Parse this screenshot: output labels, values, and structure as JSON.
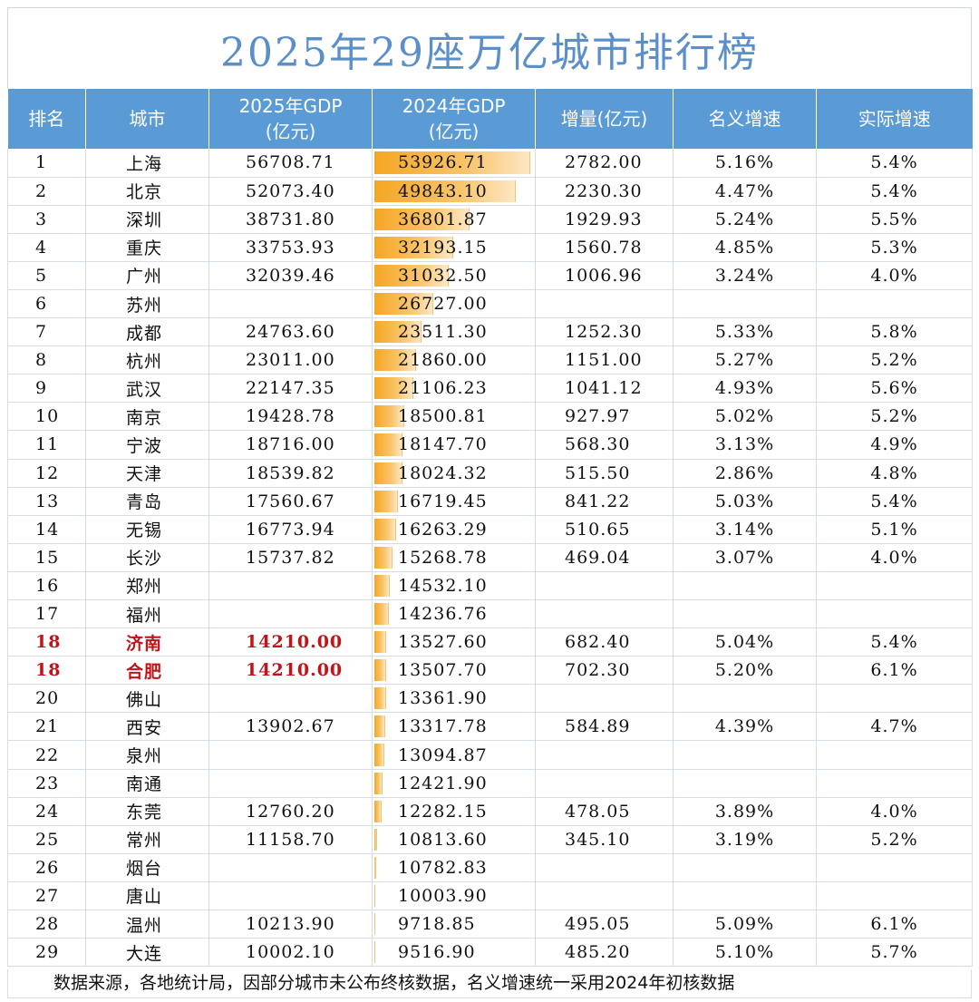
{
  "title": "2025年29座万亿城市排行榜",
  "accent_color": "#5b9bd5",
  "highlight_color": "#c0141b",
  "headers": {
    "rank": "排名",
    "city": "城市",
    "gdp2025_l1": "2025年GDP",
    "gdp2025_l2": "(亿元)",
    "gdp2024_l1": "2024年GDP",
    "gdp2024_l2": "(亿元)",
    "increase": "增量(亿元)",
    "nominal": "名义增速",
    "real": "实际增速"
  },
  "rows": [
    {
      "rank": "1",
      "city": "上海",
      "gdp2025": "56708.71",
      "gdp2024": "53926.71",
      "inc": "2782.00",
      "nom": "5.16%",
      "real": "5.4%",
      "hl": false
    },
    {
      "rank": "2",
      "city": "北京",
      "gdp2025": "52073.40",
      "gdp2024": "49843.10",
      "inc": "2230.30",
      "nom": "4.47%",
      "real": "5.4%",
      "hl": false
    },
    {
      "rank": "3",
      "city": "深圳",
      "gdp2025": "38731.80",
      "gdp2024": "36801.87",
      "inc": "1929.93",
      "nom": "5.24%",
      "real": "5.5%",
      "hl": false
    },
    {
      "rank": "4",
      "city": "重庆",
      "gdp2025": "33753.93",
      "gdp2024": "32193.15",
      "inc": "1560.78",
      "nom": "4.85%",
      "real": "5.3%",
      "hl": false
    },
    {
      "rank": "5",
      "city": "广州",
      "gdp2025": "32039.46",
      "gdp2024": "31032.50",
      "inc": "1006.96",
      "nom": "3.24%",
      "real": "4.0%",
      "hl": false
    },
    {
      "rank": "6",
      "city": "苏州",
      "gdp2025": "",
      "gdp2024": "26727.00",
      "inc": "",
      "nom": "",
      "real": "",
      "hl": false
    },
    {
      "rank": "7",
      "city": "成都",
      "gdp2025": "24763.60",
      "gdp2024": "23511.30",
      "inc": "1252.30",
      "nom": "5.33%",
      "real": "5.8%",
      "hl": false
    },
    {
      "rank": "8",
      "city": "杭州",
      "gdp2025": "23011.00",
      "gdp2024": "21860.00",
      "inc": "1151.00",
      "nom": "5.27%",
      "real": "5.2%",
      "hl": false
    },
    {
      "rank": "9",
      "city": "武汉",
      "gdp2025": "22147.35",
      "gdp2024": "21106.23",
      "inc": "1041.12",
      "nom": "4.93%",
      "real": "5.6%",
      "hl": false
    },
    {
      "rank": "10",
      "city": "南京",
      "gdp2025": "19428.78",
      "gdp2024": "18500.81",
      "inc": "927.97",
      "nom": "5.02%",
      "real": "5.2%",
      "hl": false
    },
    {
      "rank": "11",
      "city": "宁波",
      "gdp2025": "18716.00",
      "gdp2024": "18147.70",
      "inc": "568.30",
      "nom": "3.13%",
      "real": "4.9%",
      "hl": false
    },
    {
      "rank": "12",
      "city": "天津",
      "gdp2025": "18539.82",
      "gdp2024": "18024.32",
      "inc": "515.50",
      "nom": "2.86%",
      "real": "4.8%",
      "hl": false
    },
    {
      "rank": "13",
      "city": "青岛",
      "gdp2025": "17560.67",
      "gdp2024": "16719.45",
      "inc": "841.22",
      "nom": "5.03%",
      "real": "5.4%",
      "hl": false
    },
    {
      "rank": "14",
      "city": "无锡",
      "gdp2025": "16773.94",
      "gdp2024": "16263.29",
      "inc": "510.65",
      "nom": "3.14%",
      "real": "5.1%",
      "hl": false
    },
    {
      "rank": "15",
      "city": "长沙",
      "gdp2025": "15737.82",
      "gdp2024": "15268.78",
      "inc": "469.04",
      "nom": "3.07%",
      "real": "4.0%",
      "hl": false
    },
    {
      "rank": "16",
      "city": "郑州",
      "gdp2025": "",
      "gdp2024": "14532.10",
      "inc": "",
      "nom": "",
      "real": "",
      "hl": false
    },
    {
      "rank": "17",
      "city": "福州",
      "gdp2025": "",
      "gdp2024": "14236.76",
      "inc": "",
      "nom": "",
      "real": "",
      "hl": false
    },
    {
      "rank": "18",
      "city": "济南",
      "gdp2025": "14210.00",
      "gdp2024": "13527.60",
      "inc": "682.40",
      "nom": "5.04%",
      "real": "5.4%",
      "hl": true
    },
    {
      "rank": "18",
      "city": "合肥",
      "gdp2025": "14210.00",
      "gdp2024": "13507.70",
      "inc": "702.30",
      "nom": "5.20%",
      "real": "6.1%",
      "hl": true
    },
    {
      "rank": "20",
      "city": "佛山",
      "gdp2025": "",
      "gdp2024": "13361.90",
      "inc": "",
      "nom": "",
      "real": "",
      "hl": false
    },
    {
      "rank": "21",
      "city": "西安",
      "gdp2025": "13902.67",
      "gdp2024": "13317.78",
      "inc": "584.89",
      "nom": "4.39%",
      "real": "4.7%",
      "hl": false
    },
    {
      "rank": "22",
      "city": "泉州",
      "gdp2025": "",
      "gdp2024": "13094.87",
      "inc": "",
      "nom": "",
      "real": "",
      "hl": false
    },
    {
      "rank": "23",
      "city": "南通",
      "gdp2025": "",
      "gdp2024": "12421.90",
      "inc": "",
      "nom": "",
      "real": "",
      "hl": false
    },
    {
      "rank": "24",
      "city": "东莞",
      "gdp2025": "12760.20",
      "gdp2024": "12282.15",
      "inc": "478.05",
      "nom": "3.89%",
      "real": "4.0%",
      "hl": false
    },
    {
      "rank": "25",
      "city": "常州",
      "gdp2025": "11158.70",
      "gdp2024": "10813.60",
      "inc": "345.10",
      "nom": "3.19%",
      "real": "5.2%",
      "hl": false
    },
    {
      "rank": "26",
      "city": "烟台",
      "gdp2025": "",
      "gdp2024": "10782.83",
      "inc": "",
      "nom": "",
      "real": "",
      "hl": false
    },
    {
      "rank": "27",
      "city": "唐山",
      "gdp2025": "",
      "gdp2024": "10003.90",
      "inc": "",
      "nom": "",
      "real": "",
      "hl": false
    },
    {
      "rank": "28",
      "city": "温州",
      "gdp2025": "10213.90",
      "gdp2024": "9718.85",
      "inc": "495.05",
      "nom": "5.09%",
      "real": "6.1%",
      "hl": false
    },
    {
      "rank": "29",
      "city": "大连",
      "gdp2025": "10002.10",
      "gdp2024": "9516.90",
      "inc": "485.20",
      "nom": "5.10%",
      "real": "5.7%",
      "hl": false
    }
  ],
  "footer": "数据来源，各地统计局，因部分城市未公布终核数据，名义增速统一采用2024年初核数据"
}
